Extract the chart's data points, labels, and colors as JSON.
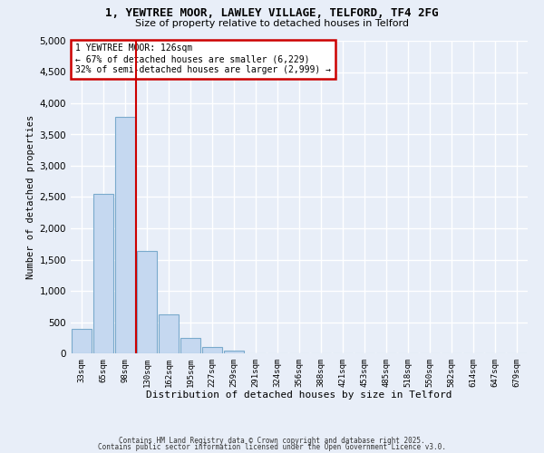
{
  "title": "1, YEWTREE MOOR, LAWLEY VILLAGE, TELFORD, TF4 2FG",
  "subtitle": "Size of property relative to detached houses in Telford",
  "xlabel": "Distribution of detached houses by size in Telford",
  "ylabel": "Number of detached properties",
  "categories": [
    "33sqm",
    "65sqm",
    "98sqm",
    "130sqm",
    "162sqm",
    "195sqm",
    "227sqm",
    "259sqm",
    "291sqm",
    "324sqm",
    "356sqm",
    "388sqm",
    "421sqm",
    "453sqm",
    "485sqm",
    "518sqm",
    "550sqm",
    "582sqm",
    "614sqm",
    "647sqm",
    "679sqm"
  ],
  "bar_values": [
    390,
    2550,
    3780,
    1640,
    620,
    250,
    100,
    50,
    0,
    0,
    0,
    0,
    0,
    0,
    0,
    0,
    0,
    0,
    0,
    0,
    0
  ],
  "bar_color": "#c5d8f0",
  "bar_edge_color": "#7aaacc",
  "vline_color": "#cc0000",
  "annotation_title": "1 YEWTREE MOOR: 126sqm",
  "annotation_line1": "← 67% of detached houses are smaller (6,229)",
  "annotation_line2": "32% of semi-detached houses are larger (2,999) →",
  "annotation_box_color": "#cc0000",
  "ylim": [
    0,
    5000
  ],
  "yticks": [
    0,
    500,
    1000,
    1500,
    2000,
    2500,
    3000,
    3500,
    4000,
    4500,
    5000
  ],
  "footnote1": "Contains HM Land Registry data © Crown copyright and database right 2025.",
  "footnote2": "Contains public sector information licensed under the Open Government Licence v3.0.",
  "background_color": "#e8eef8",
  "grid_color": "#ffffff"
}
